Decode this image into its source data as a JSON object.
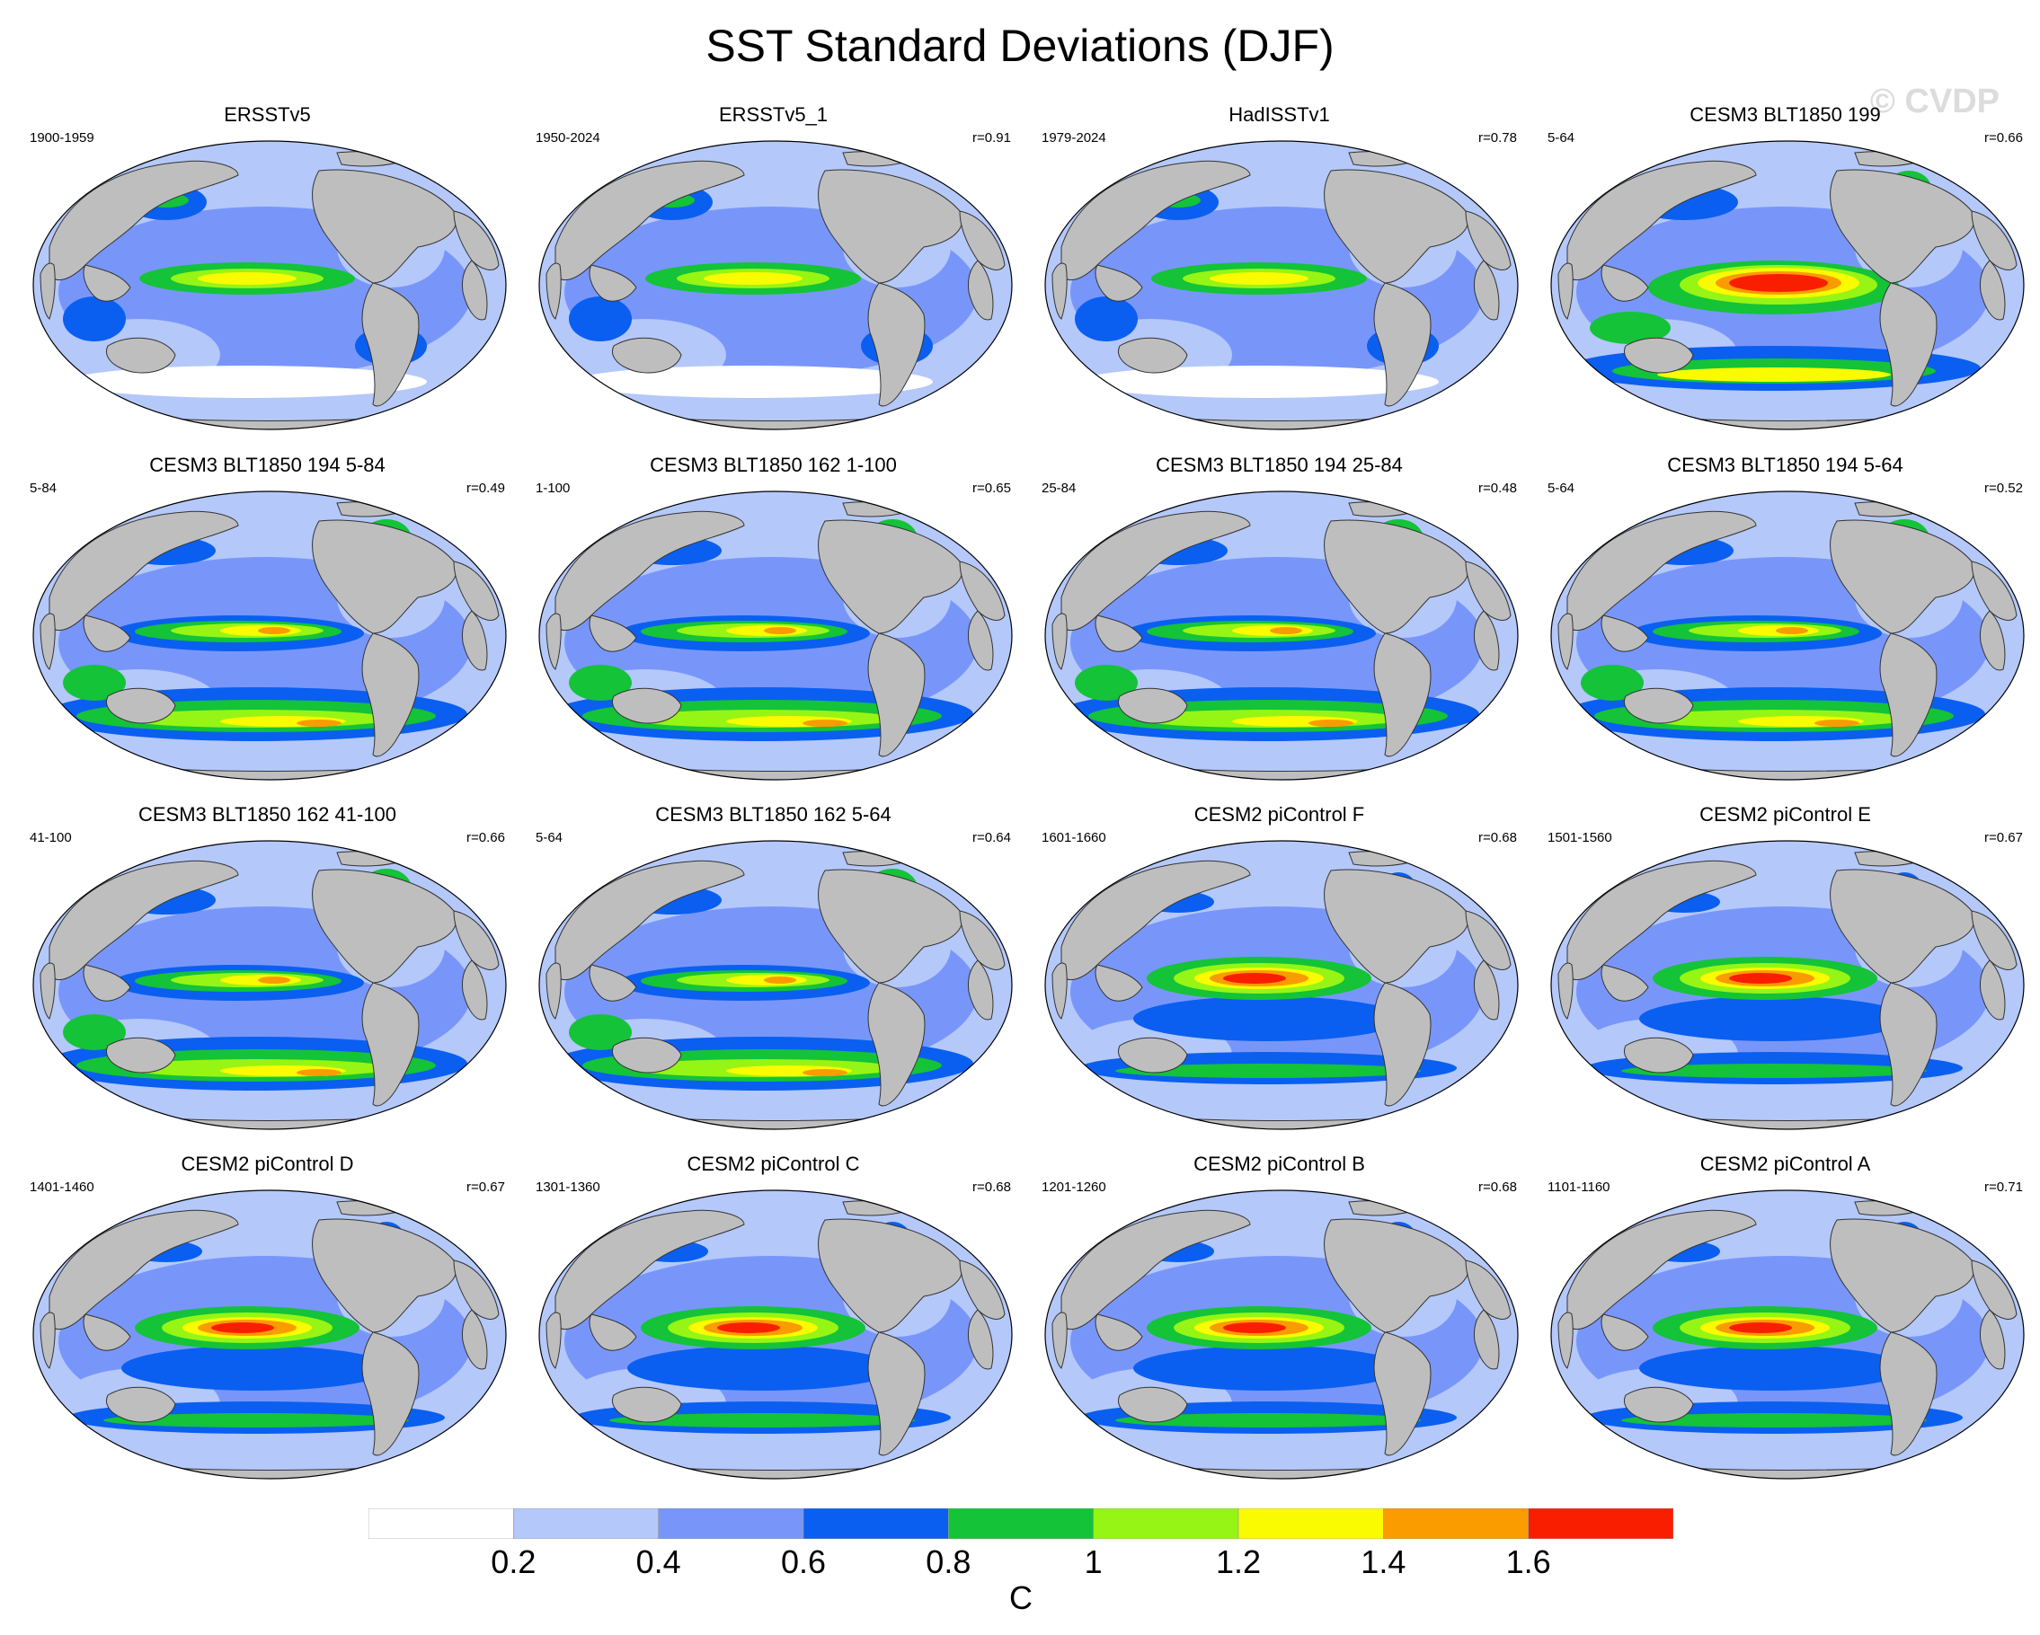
{
  "title": "SST Standard Deviations (DJF)",
  "watermark": "© CVDP",
  "panels": [
    {
      "title": "ERSSTv5",
      "left": "1900-1959",
      "right": "",
      "style": "obs"
    },
    {
      "title": "ERSSTv5_1",
      "left": "1950-2024",
      "right": "r=0.91",
      "style": "obs"
    },
    {
      "title": "HadISSTv1",
      "left": "1979-2024",
      "right": "r=0.78",
      "style": "obs"
    },
    {
      "title": "CESM3 BLT1850 199",
      "left": "5-64",
      "right": "r=0.66",
      "style": "strong"
    },
    {
      "title": "CESM3 BLT1850 194 5-84",
      "left": "5-84",
      "right": "r=0.49",
      "style": "cesm3"
    },
    {
      "title": "CESM3 BLT1850 162 1-100",
      "left": "1-100",
      "right": "r=0.65",
      "style": "cesm3"
    },
    {
      "title": "CESM3 BLT1850 194 25-84",
      "left": "25-84",
      "right": "r=0.48",
      "style": "cesm3"
    },
    {
      "title": "CESM3 BLT1850 194 5-64",
      "left": "5-64",
      "right": "r=0.52",
      "style": "cesm3"
    },
    {
      "title": "CESM3 BLT1850 162 41-100",
      "left": "41-100",
      "right": "r=0.66",
      "style": "cesm3"
    },
    {
      "title": "CESM3 BLT1850 162 5-64",
      "left": "5-64",
      "right": "r=0.64",
      "style": "cesm3"
    },
    {
      "title": "CESM2 piControl F",
      "left": "1601-1660",
      "right": "r=0.68",
      "style": "cesm2"
    },
    {
      "title": "CESM2 piControl E",
      "left": "1501-1560",
      "right": "r=0.67",
      "style": "cesm2"
    },
    {
      "title": "CESM2 piControl D",
      "left": "1401-1460",
      "right": "r=0.67",
      "style": "cesm2"
    },
    {
      "title": "CESM2 piControl C",
      "left": "1301-1360",
      "right": "r=0.68",
      "style": "cesm2"
    },
    {
      "title": "CESM2 piControl B",
      "left": "1201-1260",
      "right": "r=0.68",
      "style": "cesm2"
    },
    {
      "title": "CESM2 piControl A",
      "left": "1101-1160",
      "right": "r=0.71",
      "style": "cesm2"
    }
  ],
  "colorbar": {
    "colors": [
      "#ffffff",
      "#b4c8fa",
      "#7896fa",
      "#0a5ff0",
      "#14c337",
      "#96f514",
      "#fafa00",
      "#fa9b00",
      "#fa1e00"
    ],
    "labels": [
      "0.2",
      "0.4",
      "0.6",
      "0.8",
      "1",
      "1.2",
      "1.4",
      "1.6"
    ],
    "unit": "C"
  }
}
